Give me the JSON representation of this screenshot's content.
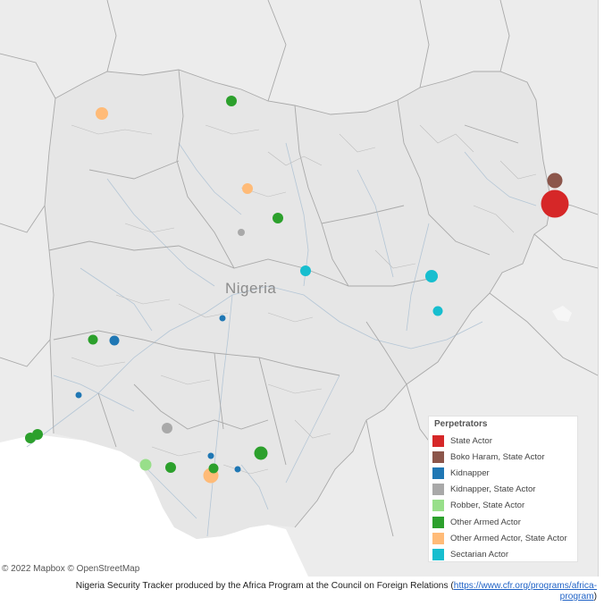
{
  "map": {
    "country_label": "Nigeria",
    "attribution": "© 2022 Mapbox © OpenStreetMap"
  },
  "legend": {
    "title": "Perpetrators",
    "items": [
      {
        "label": "State Actor",
        "color": "#d62728"
      },
      {
        "label": "Boko Haram, State Actor",
        "color": "#8c564b"
      },
      {
        "label": "Kidnapper",
        "color": "#1f77b4"
      },
      {
        "label": "Kidnapper, State Actor",
        "color": "#a9a9a9"
      },
      {
        "label": "Robber, State Actor",
        "color": "#98df8a"
      },
      {
        "label": "Other Armed Actor",
        "color": "#2ca02c"
      },
      {
        "label": "Other Armed Actor, State Actor",
        "color": "#ffbb78"
      },
      {
        "label": "Sectarian Actor",
        "color": "#17becf"
      }
    ]
  },
  "footer": {
    "text": "Nigeria Security Tracker produced by the Africa Program at the Council on Foreign Relations (",
    "link_line1": "https://www.cfr.org/programs/africa-",
    "link_line2": "program",
    "close": ")"
  }
}
